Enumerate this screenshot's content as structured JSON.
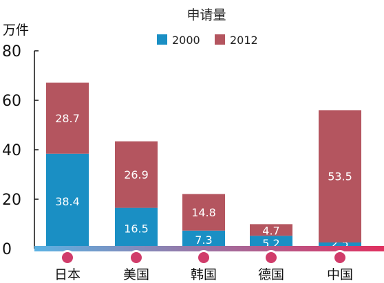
{
  "chart_data": {
    "type": "bar",
    "stacked": true,
    "title": "申请量",
    "ylabel": "万件",
    "ylim": [
      0,
      80
    ],
    "yticks": [
      "0",
      "20",
      "40",
      "60",
      "80"
    ],
    "legend_position": "top-center",
    "categories": [
      "日本",
      "美国",
      "韩国",
      "德国",
      "中国"
    ],
    "series": [
      {
        "name": "2000",
        "values": [
          38.4,
          16.5,
          7.3,
          5.2,
          2.5
        ],
        "labels": [
          "38.4",
          "16.5",
          "7.3",
          "5.2",
          "2.5"
        ],
        "color": "#1a8fc4"
      },
      {
        "name": "2012",
        "values": [
          28.7,
          26.9,
          14.8,
          4.7,
          53.5
        ],
        "labels": [
          "28.7",
          "26.9",
          "14.8",
          "4.7",
          "53.5"
        ],
        "color": "#b4555f"
      }
    ],
    "axis_colors": {
      "baseline_left": "#5bb2e3",
      "baseline_right": "#e0305f",
      "marker": "#d03c6a"
    },
    "grid": false
  }
}
